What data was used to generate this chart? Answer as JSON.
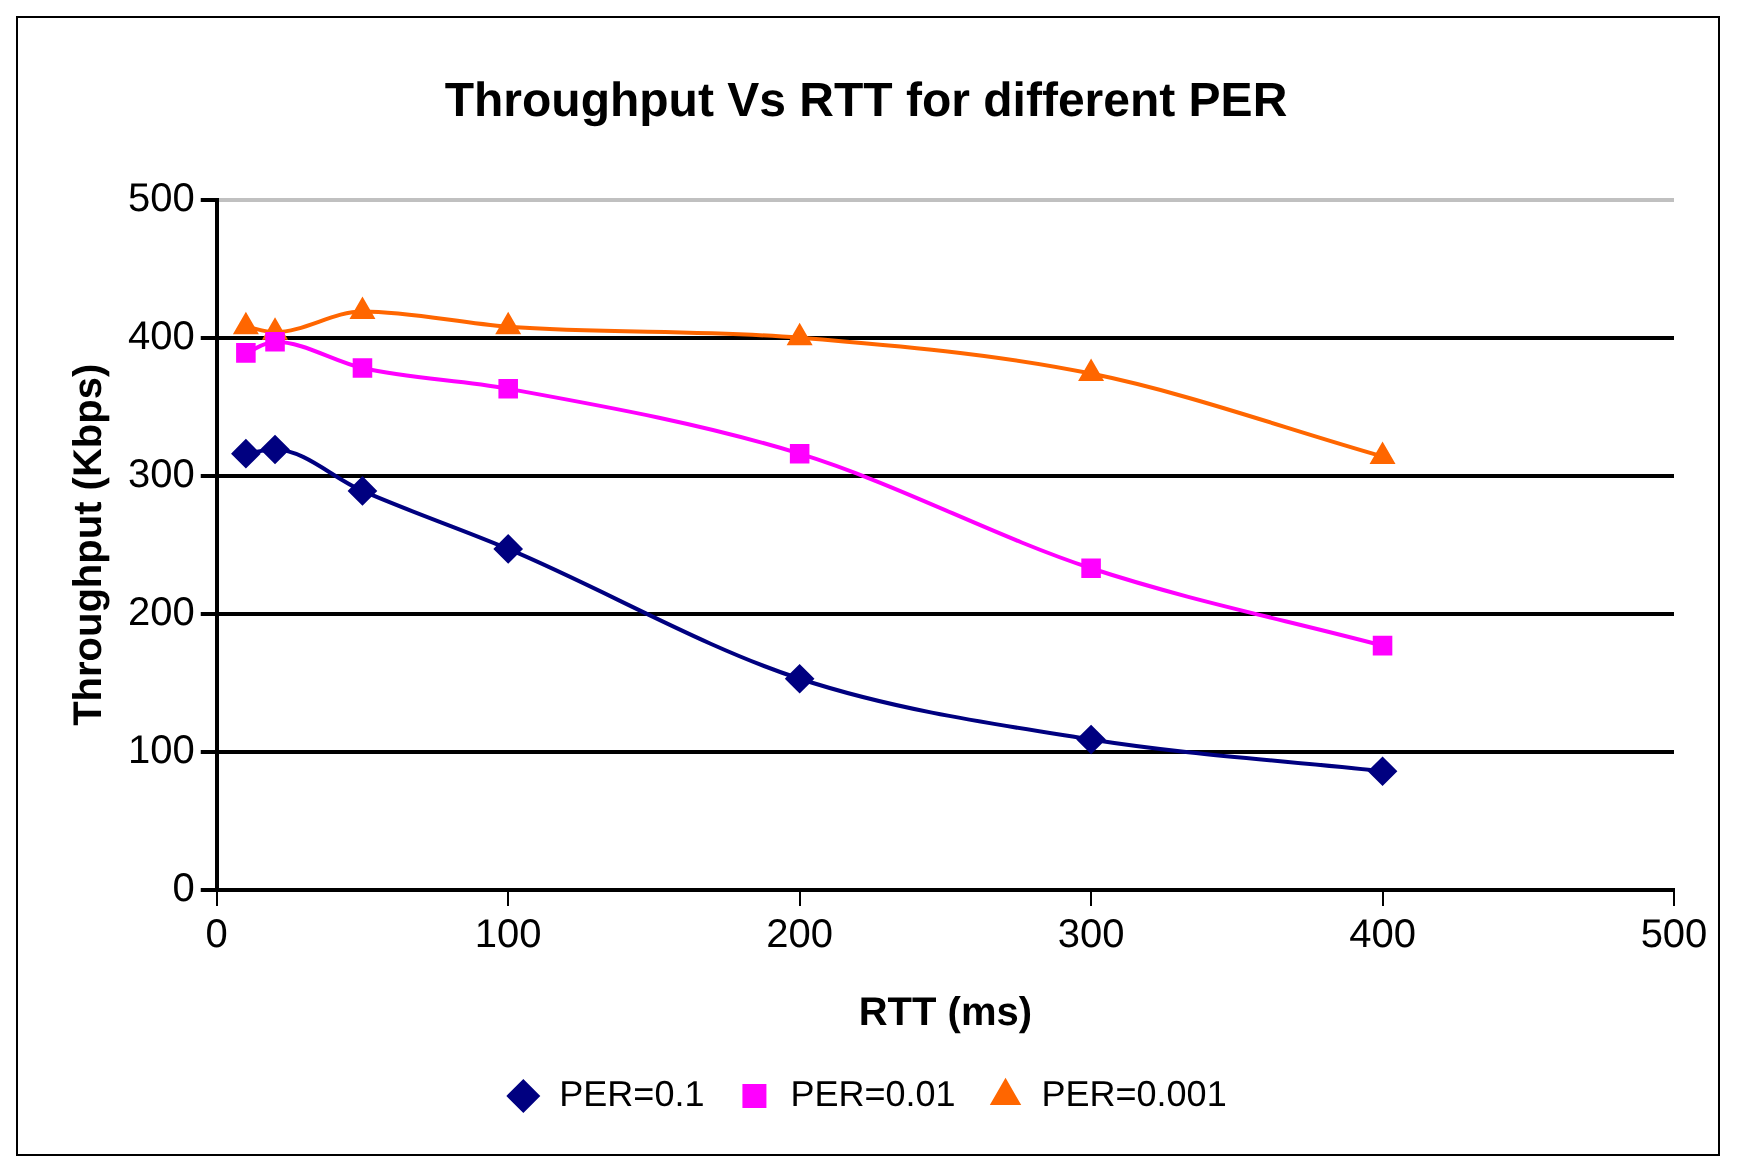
{
  "chart_data": {
    "type": "line",
    "title": "Throughput Vs RTT for different PER",
    "xlabel": "RTT (ms)",
    "ylabel": "Throughput (Kbps)",
    "x": [
      10,
      20,
      50,
      100,
      200,
      300,
      400
    ],
    "series": [
      {
        "name": "PER=0.1",
        "color": "#000080",
        "marker": "diamond",
        "values": [
          316,
          319,
          289,
          247,
          153,
          109,
          86
        ]
      },
      {
        "name": "PER=0.01",
        "color": "#ff00ff",
        "marker": "square",
        "values": [
          389,
          397,
          378,
          363,
          316,
          233,
          177
        ]
      },
      {
        "name": "PER=0.001",
        "color": "#ff6600",
        "marker": "triangle",
        "values": [
          408,
          404,
          419,
          408,
          400,
          374,
          314
        ]
      }
    ],
    "xlim": [
      0,
      500
    ],
    "xticks": [
      0,
      100,
      200,
      300,
      400,
      500
    ],
    "ylim": [
      0,
      500
    ],
    "yticks": [
      0,
      100,
      200,
      300,
      400,
      500
    ],
    "grid": "y",
    "legend": "bottom",
    "line_style": "solid"
  }
}
